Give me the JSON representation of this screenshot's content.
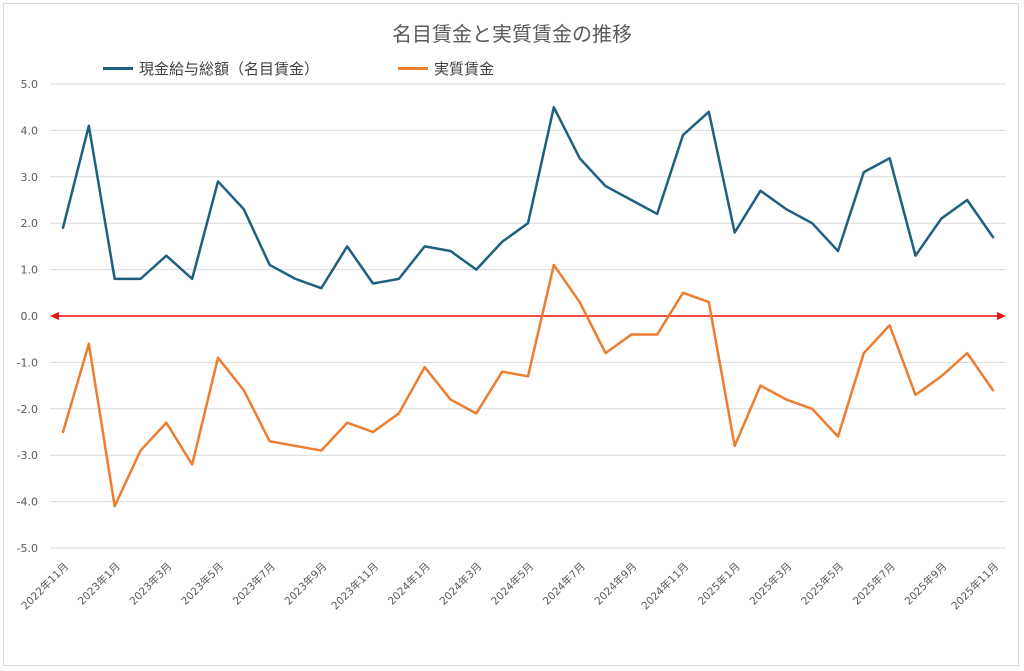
{
  "chart_data": {
    "type": "line",
    "title": "名目賃金と実質賃金の推移",
    "xlabel": "",
    "ylabel": "",
    "ylim": [
      -5.0,
      5.0
    ],
    "ytick_step": 1.0,
    "grid": true,
    "legend_position": "top",
    "zero_line_color": "#e8130c",
    "categories": [
      "2022年11月",
      "2022年12月",
      "2023年1月",
      "2023年2月",
      "2023年3月",
      "2023年4月",
      "2023年5月",
      "2023年6月",
      "2023年7月",
      "2023年8月",
      "2023年9月",
      "2023年10月",
      "2023年11月",
      "2023年12月",
      "2024年1月",
      "2024年2月",
      "2024年3月",
      "2024年4月",
      "2024年5月",
      "2024年6月",
      "2024年7月",
      "2024年8月",
      "2024年9月",
      "2024年10月",
      "2024年11月",
      "2024年12月",
      "2025年1月",
      "2025年2月",
      "2025年3月",
      "2025年4月",
      "2025年5月",
      "2025年6月",
      "2025年7月",
      "2025年8月",
      "2025年9月",
      "2025年10月",
      "2025年11月"
    ],
    "tick_labels": [
      "2022年11月",
      "2023年1月",
      "2023年3月",
      "2023年5月",
      "2023年7月",
      "2023年9月",
      "2023年11月",
      "2024年1月",
      "2024年3月",
      "2024年5月",
      "2024年7月",
      "2024年9月",
      "2024年11月",
      "2025年1月",
      "2025年3月",
      "2025年5月",
      "2025年7月",
      "2025年9月",
      "2025年11月"
    ],
    "series": [
      {
        "name": "現金給与総額（名目賃金）",
        "color": "#1f5f7f",
        "values": [
          1.9,
          4.1,
          0.8,
          0.8,
          1.3,
          0.8,
          2.9,
          2.3,
          1.1,
          0.8,
          0.6,
          1.5,
          0.7,
          0.8,
          1.5,
          1.4,
          1.0,
          1.6,
          2.0,
          4.5,
          3.4,
          2.8,
          2.5,
          2.2,
          3.9,
          4.4,
          1.8,
          2.7,
          2.3,
          2.0,
          1.4,
          3.1,
          3.4,
          1.3,
          2.1,
          2.5,
          1.7
        ]
      },
      {
        "name": "実質賃金",
        "color": "#ed7d31",
        "values": [
          -2.5,
          -0.6,
          -4.1,
          -2.9,
          -2.3,
          -3.2,
          -0.9,
          -1.6,
          -2.7,
          -2.8,
          -2.9,
          -2.3,
          -2.5,
          -2.1,
          -1.1,
          -1.8,
          -2.1,
          -1.2,
          -1.3,
          1.1,
          0.3,
          -0.8,
          -0.4,
          -0.4,
          0.5,
          0.3,
          -2.8,
          -1.5,
          -1.8,
          -2.0,
          -2.6,
          -0.8,
          -0.2,
          -1.7,
          -1.3,
          -0.8,
          -1.6
        ]
      }
    ]
  }
}
